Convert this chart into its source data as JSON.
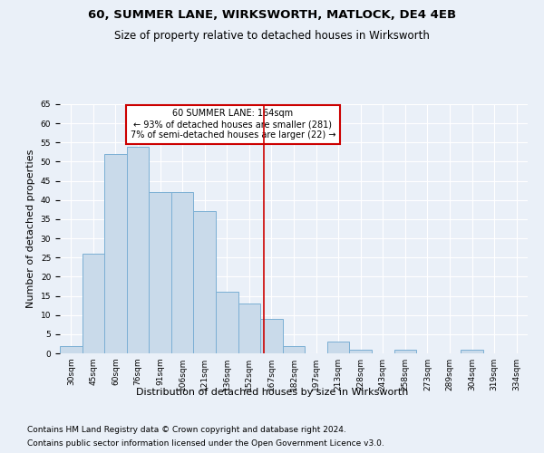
{
  "title": "60, SUMMER LANE, WIRKSWORTH, MATLOCK, DE4 4EB",
  "subtitle": "Size of property relative to detached houses in Wirksworth",
  "xlabel": "Distribution of detached houses by size in Wirksworth",
  "ylabel": "Number of detached properties",
  "footer_line1": "Contains HM Land Registry data © Crown copyright and database right 2024.",
  "footer_line2": "Contains public sector information licensed under the Open Government Licence v3.0.",
  "bin_labels": [
    "30sqm",
    "45sqm",
    "60sqm",
    "76sqm",
    "91sqm",
    "106sqm",
    "121sqm",
    "136sqm",
    "152sqm",
    "167sqm",
    "182sqm",
    "197sqm",
    "213sqm",
    "228sqm",
    "243sqm",
    "258sqm",
    "273sqm",
    "289sqm",
    "304sqm",
    "319sqm",
    "334sqm"
  ],
  "bar_values": [
    2,
    26,
    52,
    54,
    42,
    42,
    37,
    16,
    13,
    9,
    2,
    0,
    3,
    1,
    0,
    1,
    0,
    0,
    1,
    0,
    0
  ],
  "bar_color": "#c9daea",
  "bar_edge_color": "#7bafd4",
  "vline_x_index": 8.65,
  "vline_color": "#cc0000",
  "annotation_text": "60 SUMMER LANE: 164sqm\n← 93% of detached houses are smaller (281)\n7% of semi-detached houses are larger (22) →",
  "annotation_box_color": "#ffffff",
  "annotation_box_edge_color": "#cc0000",
  "ylim": [
    0,
    65
  ],
  "yticks": [
    0,
    5,
    10,
    15,
    20,
    25,
    30,
    35,
    40,
    45,
    50,
    55,
    60,
    65
  ],
  "background_color": "#eaf0f8",
  "grid_color": "#ffffff",
  "title_fontsize": 9.5,
  "subtitle_fontsize": 8.5,
  "ylabel_fontsize": 8,
  "xlabel_fontsize": 8,
  "tick_fontsize": 6.5,
  "annotation_fontsize": 7,
  "footer_fontsize": 6.5
}
